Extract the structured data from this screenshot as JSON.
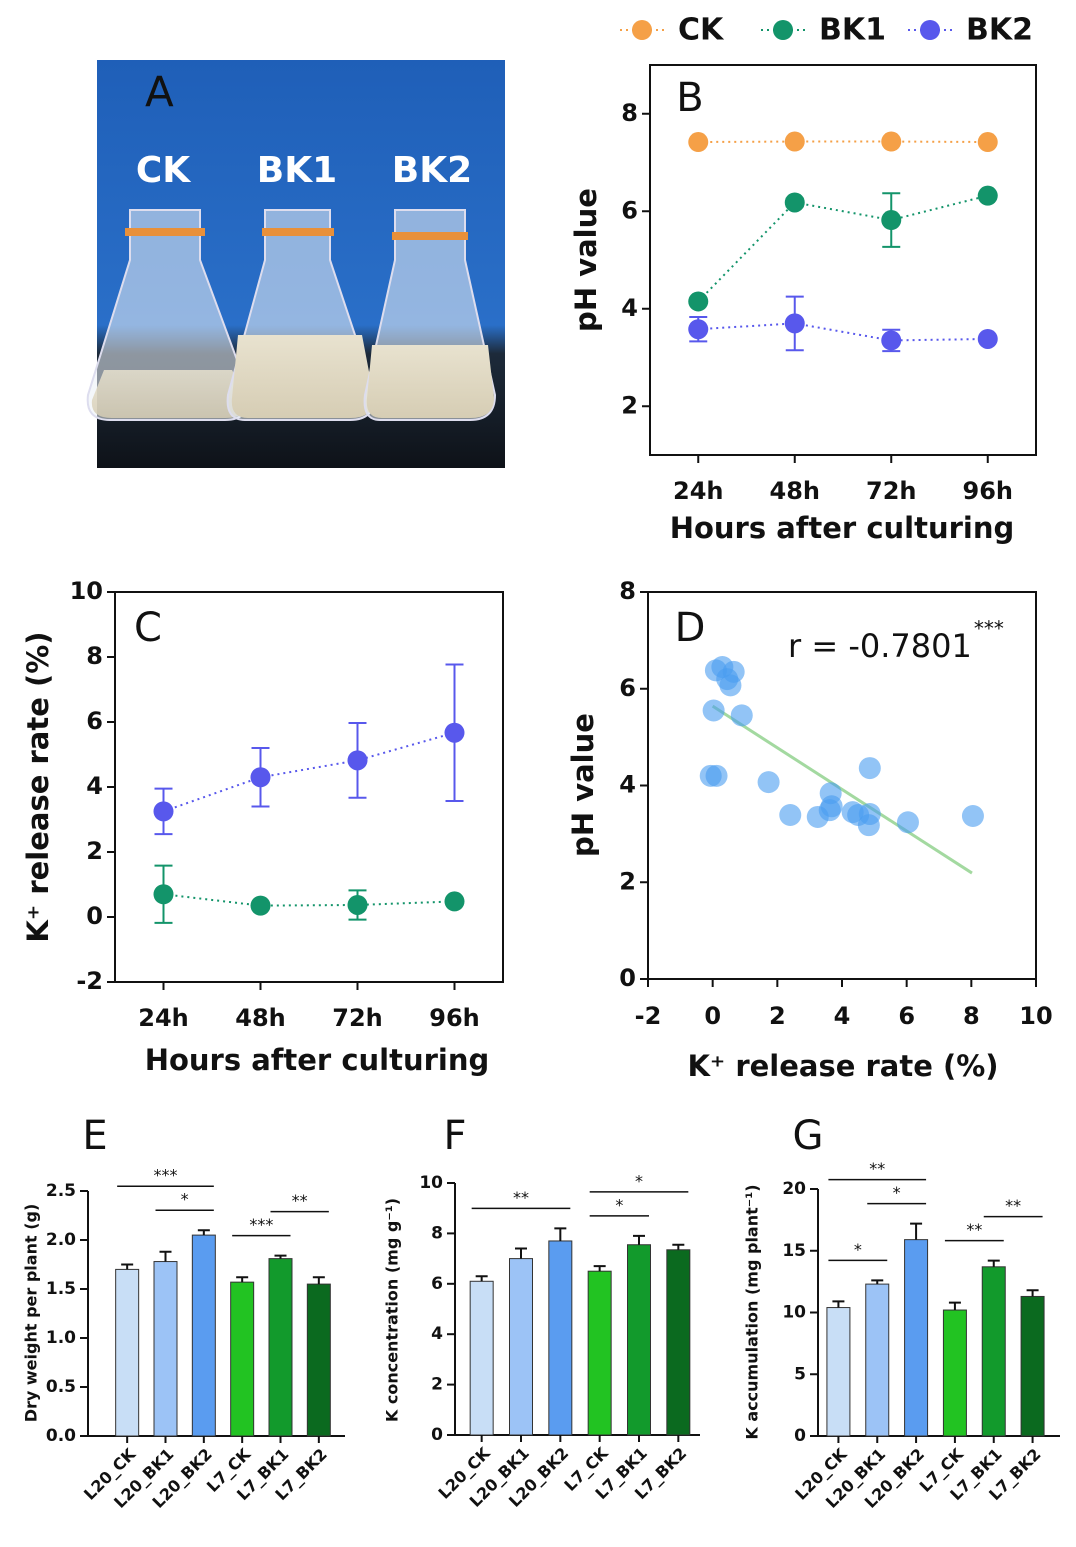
{
  "photo": {
    "label": "A",
    "flasks": [
      "CK",
      "BK1",
      "BK2"
    ]
  },
  "chart_data": [
    {
      "type": "line",
      "panel": "B",
      "y_label": "pH value",
      "x_label": "Hours after culturing",
      "categories": [
        "24h",
        "48h",
        "72h",
        "96h"
      ],
      "series": [
        {
          "name": "CK",
          "color": "#f5a047",
          "values": [
            7.42,
            7.43,
            7.43,
            7.42
          ]
        },
        {
          "name": "BK1",
          "color": "#13946a",
          "values": [
            4.15,
            6.18,
            5.82,
            6.32
          ],
          "errors": [
            0.05,
            0.08,
            0.55,
            0.05
          ]
        },
        {
          "name": "BK2",
          "color": "#5858ec",
          "values": [
            3.58,
            3.7,
            3.35,
            3.38
          ],
          "errors": [
            0.25,
            0.55,
            0.22,
            0.05
          ]
        }
      ],
      "ylim": [
        1,
        9
      ],
      "yticks": [
        2,
        4,
        6,
        8
      ]
    },
    {
      "type": "line",
      "panel": "C",
      "y_label": "K⁺ release rate (%)",
      "x_label": "Hours after culturing",
      "categories": [
        "24h",
        "48h",
        "72h",
        "96h"
      ],
      "series": [
        {
          "color": "#13946a",
          "values": [
            0.7,
            0.35,
            0.37,
            0.48
          ],
          "errors": [
            0.88,
            0.05,
            0.45,
            0.05
          ]
        },
        {
          "color": "#5858ec",
          "values": [
            3.25,
            4.3,
            4.82,
            5.67
          ],
          "errors": [
            0.7,
            0.9,
            1.15,
            2.1
          ]
        }
      ],
      "ylim": [
        -2,
        10
      ],
      "yticks": [
        -2,
        0,
        2,
        4,
        6,
        8,
        10
      ]
    },
    {
      "type": "scatter",
      "panel": "D",
      "y_label": "pH value",
      "x_label": "K⁺ release rate (%)",
      "annotation": "r = -0.7801",
      "annotation_sig": "***",
      "color": "#4a9cf0",
      "x": [
        0.1,
        0.3,
        0.45,
        0.65,
        0.55,
        0.03,
        0.9,
        -0.06,
        0.12,
        1.73,
        2.4,
        3.25,
        3.65,
        3.68,
        3.62,
        4.33,
        4.5,
        4.86,
        4.83,
        4.86,
        6.04,
        8.05
      ],
      "y": [
        6.38,
        6.45,
        6.2,
        6.35,
        6.07,
        5.55,
        5.45,
        4.2,
        4.2,
        4.07,
        3.39,
        3.35,
        3.84,
        3.57,
        3.49,
        3.45,
        3.39,
        3.41,
        3.18,
        4.36,
        3.24,
        3.37
      ],
      "fit": {
        "color": "#a3d9a0",
        "x": [
          0,
          8.02
        ],
        "y": [
          5.64,
          2.19
        ]
      },
      "xlim": [
        -2,
        10
      ],
      "xticks": [
        -2,
        0,
        2,
        4,
        6,
        8,
        10
      ],
      "ylim": [
        0,
        8
      ],
      "yticks": [
        0,
        2,
        4,
        6,
        8
      ]
    },
    {
      "type": "bar",
      "panel": "E",
      "y_label": "Dry weight per plant (g)",
      "categories": [
        "L20_CK",
        "L20_BK1",
        "L20_BK2",
        "L7_CK",
        "L7_BK1",
        "L7_BK2"
      ],
      "colors": [
        "#c8def6",
        "#9cc3f6",
        "#5a9cf0",
        "#22c322",
        "#129a2c",
        "#0b6a1f"
      ],
      "values": [
        1.7,
        1.78,
        2.05,
        1.57,
        1.81,
        1.55
      ],
      "errors": [
        0.05,
        0.1,
        0.05,
        0.05,
        0.03,
        0.07
      ],
      "significance": [
        {
          "from": 0,
          "to": 2,
          "label": "***"
        },
        {
          "from": 1,
          "to": 2,
          "label": "*"
        },
        {
          "from": 3,
          "to": 4,
          "label": "***"
        },
        {
          "from": 4,
          "to": 5,
          "label": "**"
        }
      ],
      "ylim": [
        0,
        2.5
      ],
      "yticks": [
        {
          "value": 0,
          "label": "0.0"
        },
        0.5,
        {
          "value": 1,
          "label": "1.0"
        },
        1.5,
        {
          "value": 2,
          "label": "2.0"
        },
        2.5
      ]
    },
    {
      "type": "bar",
      "panel": "F",
      "y_label": "K concentration (mg g⁻¹)",
      "categories": [
        "L20_CK",
        "L20_BK1",
        "L20_BK2",
        "L7_CK",
        "L7_BK1",
        "L7_BK2"
      ],
      "colors": [
        "#c8def6",
        "#9cc3f6",
        "#5a9cf0",
        "#22c322",
        "#129a2c",
        "#0b6a1f"
      ],
      "values": [
        6.1,
        7.0,
        7.7,
        6.5,
        7.55,
        7.35
      ],
      "errors": [
        0.2,
        0.4,
        0.5,
        0.2,
        0.35,
        0.2
      ],
      "significance": [
        {
          "from": 0,
          "to": 2,
          "label": "**"
        },
        {
          "from": 3,
          "to": 4,
          "label": "*"
        },
        {
          "from": 3,
          "to": 5,
          "label": "*"
        }
      ],
      "ylim": [
        0,
        10
      ],
      "yticks": [
        0,
        2,
        4,
        6,
        8,
        10
      ]
    },
    {
      "type": "bar",
      "panel": "G",
      "y_label": "K accumulation (mg plant⁻¹)",
      "categories": [
        "L20_CK",
        "L20_BK1",
        "L20_BK2",
        "L7_CK",
        "L7_BK1",
        "L7_BK2"
      ],
      "colors": [
        "#c8def6",
        "#9cc3f6",
        "#5a9cf0",
        "#22c322",
        "#129a2c",
        "#0b6a1f"
      ],
      "values": [
        10.4,
        12.3,
        15.9,
        10.2,
        13.7,
        11.3
      ],
      "errors": [
        0.5,
        0.3,
        1.3,
        0.6,
        0.5,
        0.5
      ],
      "significance": [
        {
          "from": 0,
          "to": 1,
          "label": "*"
        },
        {
          "from": 0,
          "to": 2,
          "label": "**"
        },
        {
          "from": 1,
          "to": 2,
          "label": "*"
        },
        {
          "from": 3,
          "to": 4,
          "label": "**"
        },
        {
          "from": 4,
          "to": 5,
          "label": "**"
        }
      ],
      "ylim": [
        0,
        20
      ],
      "yticks": [
        0,
        5,
        10,
        15,
        20
      ]
    }
  ]
}
